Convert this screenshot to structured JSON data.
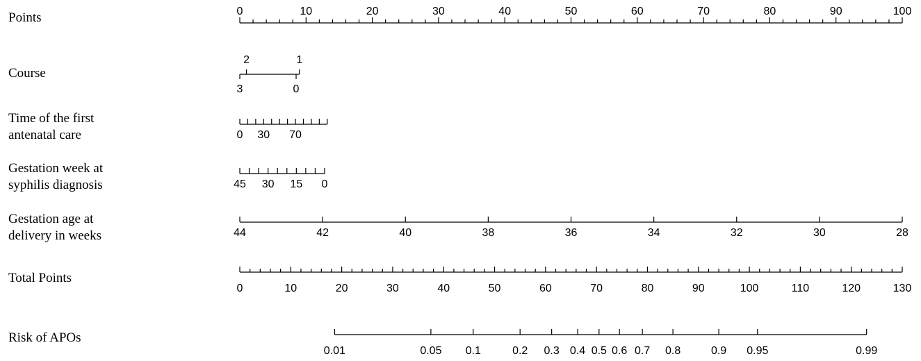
{
  "chart_data": {
    "type": "nomogram",
    "title": "",
    "rows": [
      {
        "id": "points",
        "label": [
          "Points"
        ],
        "range": [
          0,
          100
        ],
        "points_range": [
          0,
          100
        ],
        "minor_step": 2,
        "major_labels": [
          {
            "text": "0",
            "value": 0
          },
          {
            "text": "10",
            "value": 10
          },
          {
            "text": "20",
            "value": 20
          },
          {
            "text": "30",
            "value": 30
          },
          {
            "text": "40",
            "value": 40
          },
          {
            "text": "50",
            "value": 50
          },
          {
            "text": "60",
            "value": 60
          },
          {
            "text": "70",
            "value": 70
          },
          {
            "text": "80",
            "value": 80
          },
          {
            "text": "90",
            "value": 90
          },
          {
            "text": "100",
            "value": 100
          }
        ]
      },
      {
        "id": "course",
        "label": [
          "Course"
        ],
        "range": [
          0,
          3
        ],
        "points_range": [
          0,
          9
        ],
        "levels_above": [
          {
            "text": "2",
            "points": 1
          },
          {
            "text": "1",
            "points": 9
          }
        ],
        "levels_below": [
          {
            "text": "3",
            "points": 0
          },
          {
            "text": "0",
            "points": 8.5
          }
        ]
      },
      {
        "id": "first_antenatal_care",
        "label": [
          "Time of the first",
          "antenatal care"
        ],
        "range": [
          0,
          110
        ],
        "points_range": [
          0,
          13.2
        ],
        "tick_step": 10,
        "labels": [
          {
            "text": "0",
            "value": 0
          },
          {
            "text": "30",
            "value": 30
          },
          {
            "text": "70",
            "value": 70
          }
        ]
      },
      {
        "id": "syphilis_diagnosis_week",
        "label": [
          "Gestation week at",
          "syphilis diagnosis"
        ],
        "range": [
          45,
          0
        ],
        "points_range": [
          0,
          12.8
        ],
        "tick_step": 5,
        "labels": [
          {
            "text": "45",
            "value": 45
          },
          {
            "text": "30",
            "value": 30
          },
          {
            "text": "15",
            "value": 15
          },
          {
            "text": "0",
            "value": 0
          }
        ]
      },
      {
        "id": "delivery_age_weeks",
        "label": [
          "Gestation age at",
          "delivery in weeks"
        ],
        "range": [
          44,
          28
        ],
        "points_range": [
          0,
          100
        ],
        "tick_step": 2,
        "labels": [
          {
            "text": "44",
            "value": 44
          },
          {
            "text": "42",
            "value": 42
          },
          {
            "text": "40",
            "value": 40
          },
          {
            "text": "38",
            "value": 38
          },
          {
            "text": "36",
            "value": 36
          },
          {
            "text": "34",
            "value": 34
          },
          {
            "text": "32",
            "value": 32
          },
          {
            "text": "30",
            "value": 30
          },
          {
            "text": "28",
            "value": 28
          }
        ]
      },
      {
        "id": "total_points",
        "label": [
          "Total Points"
        ],
        "range": [
          0,
          130
        ],
        "minor_step": 2,
        "major_labels": [
          {
            "text": "0",
            "value": 0
          },
          {
            "text": "10",
            "value": 10
          },
          {
            "text": "20",
            "value": 20
          },
          {
            "text": "30",
            "value": 30
          },
          {
            "text": "40",
            "value": 40
          },
          {
            "text": "50",
            "value": 50
          },
          {
            "text": "60",
            "value": 60
          },
          {
            "text": "70",
            "value": 70
          },
          {
            "text": "80",
            "value": 80
          },
          {
            "text": "90",
            "value": 90
          },
          {
            "text": "100",
            "value": 100
          },
          {
            "text": "110",
            "value": 110
          },
          {
            "text": "120",
            "value": 120
          },
          {
            "text": "130",
            "value": 130
          }
        ]
      },
      {
        "id": "risk",
        "label": [
          "Risk of APOs"
        ],
        "total_points_range": [
          18.6,
          123
        ],
        "labels": [
          {
            "text": "0.01",
            "total_points": 18.6
          },
          {
            "text": "0.05",
            "total_points": 37.5
          },
          {
            "text": "0.1",
            "total_points": 45.8
          },
          {
            "text": "0.2",
            "total_points": 55.0
          },
          {
            "text": "0.3",
            "total_points": 61.2
          },
          {
            "text": "0.4",
            "total_points": 66.3
          },
          {
            "text": "0.5",
            "total_points": 70.5
          },
          {
            "text": "0.6",
            "total_points": 74.5
          },
          {
            "text": "0.7",
            "total_points": 79.0
          },
          {
            "text": "0.8",
            "total_points": 85.0
          },
          {
            "text": "0.9",
            "total_points": 94.0
          },
          {
            "text": "0.95",
            "total_points": 101.6
          },
          {
            "text": "0.99",
            "total_points": 123.0
          }
        ]
      }
    ]
  }
}
